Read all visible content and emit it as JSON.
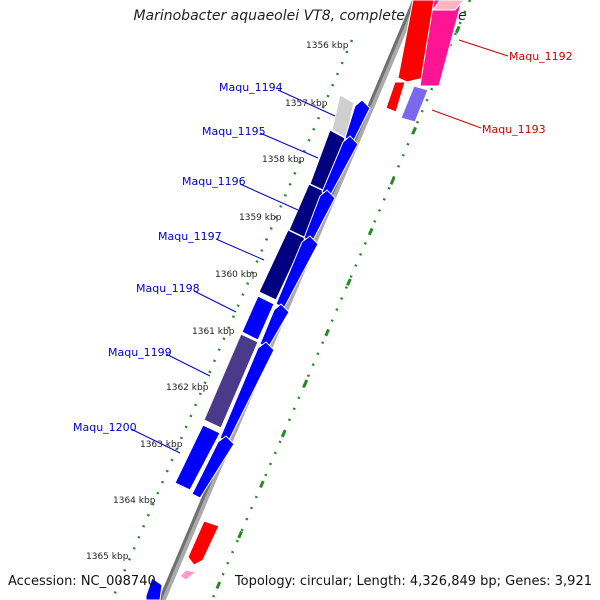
{
  "title": "Marinobacter aquaeolei VT8, complete genome",
  "footer": {
    "accession": "Accession: NC_008740",
    "summary": "Topology: circular; Length: 4,326,849 bp; Genes: 3,921"
  },
  "kbp_labels": [
    "1356 kbp",
    "1357 kbp",
    "1358 kbp",
    "1359 kbp",
    "1360 kbp",
    "1361 kbp",
    "1362 kbp",
    "1363 kbp",
    "1364 kbp",
    "1365 kbp"
  ],
  "gene_labels_blue": [
    "Maqu_1194",
    "Maqu_1195",
    "Maqu_1196",
    "Maqu_1197",
    "Maqu_1198",
    "Maqu_1199",
    "Maqu_1200"
  ],
  "gene_labels_red": [
    "Maqu_1192",
    "Maqu_1193"
  ],
  "colors": {
    "forward_gene": "#0000ff",
    "forward_gene_dark": "#000080",
    "forward_gene_mid": "#4a3a8a",
    "reverse_gene": "#ff0000",
    "reverse_gene_alt": "#ff1493",
    "reverse_gene_pale": "#7b68ee",
    "tick_green": "#228b22",
    "backbone": "#808080",
    "label_blue": "#0000cc",
    "label_red": "#cc0000"
  }
}
